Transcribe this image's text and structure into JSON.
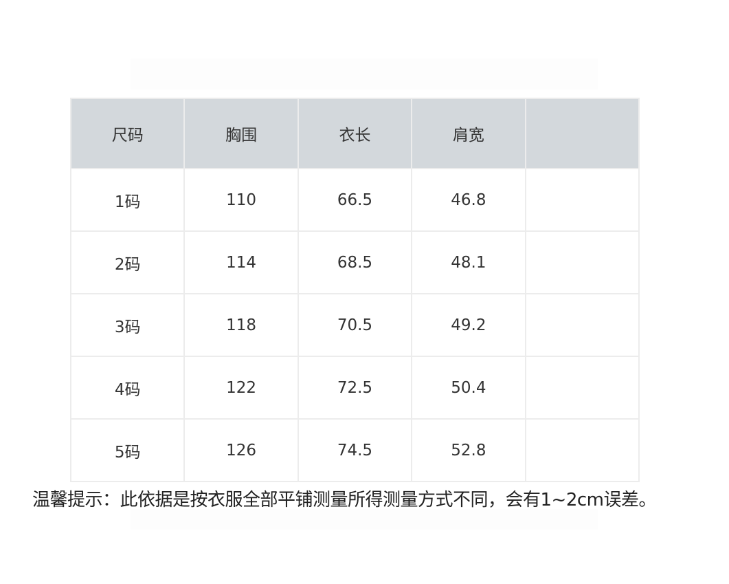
{
  "table": {
    "headers": [
      "尺码",
      "胸围",
      "衣长",
      "肩宽",
      ""
    ],
    "rows": [
      [
        "1码",
        "110",
        "66.5",
        "46.8",
        ""
      ],
      [
        "2码",
        "114",
        "68.5",
        "48.1",
        ""
      ],
      [
        "3码",
        "118",
        "70.5",
        "49.2",
        ""
      ],
      [
        "4码",
        "122",
        "72.5",
        "50.4",
        ""
      ],
      [
        "5码",
        "126",
        "74.5",
        "52.8",
        ""
      ]
    ],
    "header_bg": "#d3d8dc"
  },
  "note": "温馨提示：此依据是按衣服全部平铺测量所得测量方式不同，会有1~2cm误差。"
}
